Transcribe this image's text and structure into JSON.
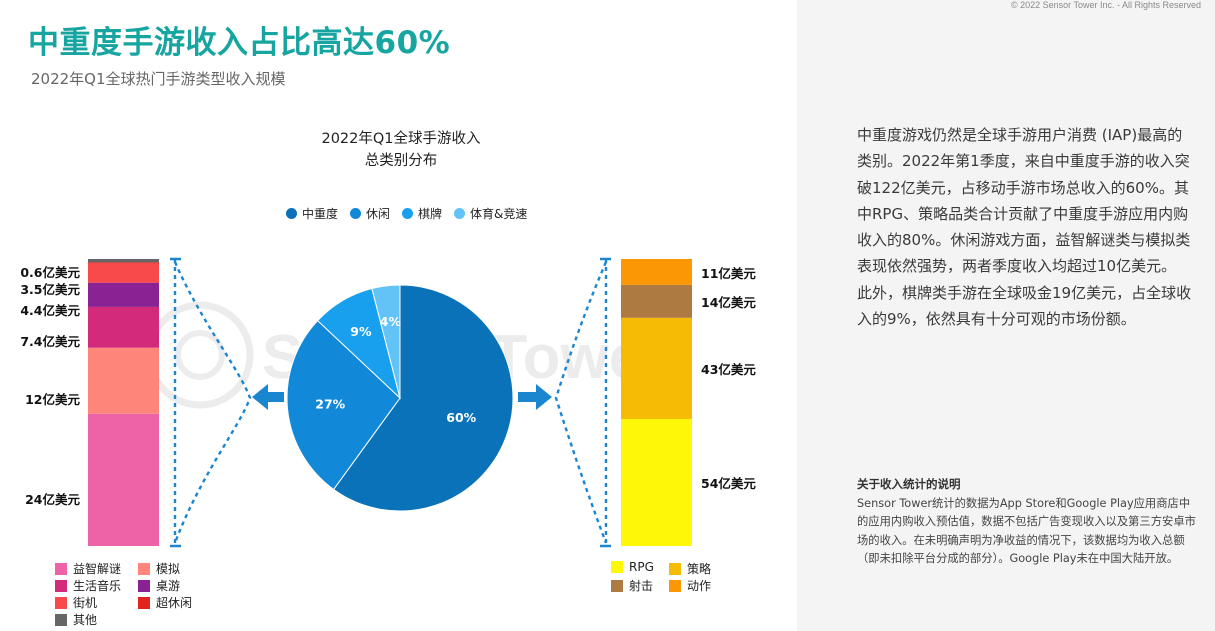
{
  "header": {
    "title": "中重度手游收入占比高达60%",
    "subtitle": "2022年Q1全球热门手游类型收入规模",
    "copyright": "© 2022 Sensor Tower Inc. - All Rights Reserved",
    "watermark": "Sensor Tower"
  },
  "chart_title": {
    "line1": "2022年Q1全球手游收入",
    "line2": "总类别分布"
  },
  "chart_data": [
    {
      "type": "pie",
      "title": "2022年Q1全球手游收入 总类别分布",
      "legend_position": "top",
      "slices": [
        {
          "name": "中重度",
          "value": 60,
          "label": "60%",
          "color": "#0a72b8"
        },
        {
          "name": "休闲",
          "value": 27,
          "label": "27%",
          "color": "#1188d8"
        },
        {
          "name": "棋牌",
          "value": 9,
          "label": "9%",
          "color": "#18a0ee"
        },
        {
          "name": "体育&竞速",
          "value": 4,
          "label": "4%",
          "color": "#63c3f7"
        }
      ]
    },
    {
      "type": "bar",
      "stacked": true,
      "unit": "亿美元",
      "series": [
        {
          "name": "益智解谜",
          "value": 24,
          "label": "24亿美元",
          "color": "#ee62a8"
        },
        {
          "name": "模拟",
          "value": 12,
          "label": "12亿美元",
          "color": "#fd8579"
        },
        {
          "name": "生活音乐",
          "value": 7.4,
          "label": "7.4亿美元",
          "color": "#d42a7c"
        },
        {
          "name": "桌游",
          "value": 4.4,
          "label": "4.4亿美元",
          "color": "#8a2293"
        },
        {
          "name": "街机",
          "value": 3.5,
          "label": "3.5亿美元",
          "color": "#f84a4a"
        },
        {
          "name": "超休闲",
          "value": 0.2,
          "label": "",
          "color": "#e3231e"
        },
        {
          "name": "其他",
          "value": 0.6,
          "label": "0.6亿美元",
          "color": "#666666"
        }
      ]
    },
    {
      "type": "bar",
      "stacked": true,
      "unit": "亿美元",
      "series": [
        {
          "name": "RPG",
          "value": 54,
          "label": "54亿美元",
          "color": "#fef707"
        },
        {
          "name": "策略",
          "value": 43,
          "label": "43亿美元",
          "color": "#f6bb05"
        },
        {
          "name": "射击",
          "value": 14,
          "label": "14亿美元",
          "color": "#ad7a41"
        },
        {
          "name": "动作",
          "value": 11,
          "label": "11亿美元",
          "color": "#fb9605"
        }
      ]
    }
  ],
  "left_legend": [
    {
      "name": "益智解谜",
      "color": "#ee62a8"
    },
    {
      "name": "模拟",
      "color": "#fd8579"
    },
    {
      "name": "生活音乐",
      "color": "#d42a7c"
    },
    {
      "name": "桌游",
      "color": "#8a2293"
    },
    {
      "name": "街机",
      "color": "#f84a4a"
    },
    {
      "name": "超休闲",
      "color": "#e3231e"
    },
    {
      "name": "其他",
      "color": "#666666"
    }
  ],
  "right_legend": [
    {
      "name": "RPG",
      "color": "#fef707"
    },
    {
      "name": "策略",
      "color": "#f6bb05"
    },
    {
      "name": "射击",
      "color": "#ad7a41"
    },
    {
      "name": "动作",
      "color": "#fb9605"
    }
  ],
  "description": {
    "paragraph1": "中重度游戏仍然是全球手游用户消费 (IAP)最高的类别。2022年第1季度，来自中重度手游的收入突破122亿美元，占移动手游市场总收入的60%。其中RPG、策略品类合计贡献了中重度手游应用内购收入的80%。休闲游戏方面，益智解谜类与模拟类表现依然强势，两者季度收入均超过10亿美元。",
    "paragraph2": "此外，棋牌类手游在全球吸金19亿美元，占全球收入的9%，依然具有十分可观的市场份额。"
  },
  "note": {
    "title": "关于收入统计的说明",
    "body": "Sensor Tower统计的数据为App Store和Google Play应用商店中的应用内购收入预估值，数据不包括广告变现收入以及第三方安卓市场的收入。在未明确声明为净收益的情况下，该数据均为收入总额（即未扣除平台分成的部分）。Google Play未在中国大陆开放。"
  }
}
